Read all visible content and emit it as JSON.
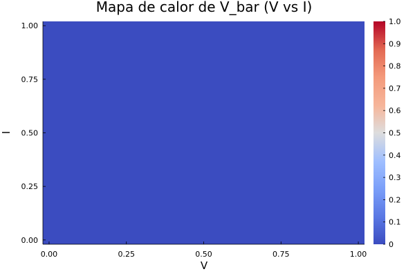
{
  "chart_data": {
    "type": "heatmap",
    "title": "Mapa de calor de V_bar (V vs I)",
    "xlabel": "V",
    "ylabel": "I",
    "xlim": [
      -0.02,
      1.02
    ],
    "ylim": [
      -0.02,
      1.02
    ],
    "x_ticks": [
      0.0,
      0.25,
      0.5,
      0.75,
      1.0
    ],
    "x_tick_labels": [
      "0.00",
      "0.25",
      "0.50",
      "0.75",
      "1.00"
    ],
    "y_ticks": [
      0.0,
      0.25,
      0.5,
      0.75,
      1.0
    ],
    "y_tick_labels": [
      "0.00",
      "0.25",
      "0.50",
      "0.75",
      "1.00"
    ],
    "values": [
      [
        0.0
      ]
    ],
    "colorbar": {
      "colormap": "coolwarm",
      "range": [
        0,
        1
      ],
      "ticks": [
        0,
        0.1,
        0.2,
        0.3,
        0.4,
        0.5,
        0.6,
        0.7,
        0.8,
        0.9,
        1.0
      ],
      "tick_labels": [
        "0",
        "0.1",
        "0.2",
        "0.3",
        "0.4",
        "0.5",
        "0.6",
        "0.7",
        "0.8",
        "0.9",
        "1.0"
      ]
    },
    "grid": false
  },
  "colors": {
    "low": "#3b4cc0",
    "mid": "#dddddd",
    "high": "#b40426",
    "axis": "#000000"
  }
}
